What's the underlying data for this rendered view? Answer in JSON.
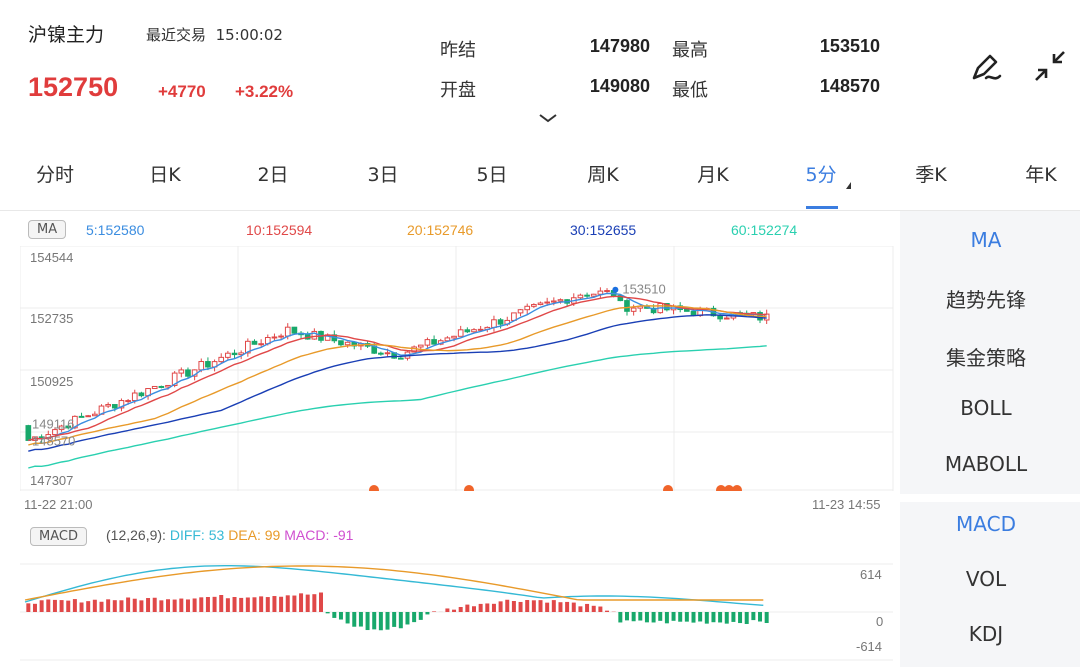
{
  "header": {
    "title": "沪镍主力",
    "last_trade_label": "最近交易",
    "last_trade_time": "15:00:02",
    "price": "152750",
    "change": "+4770",
    "change_pct": "+3.22%",
    "stats": {
      "prev_close_label": "昨结",
      "prev_close": "147980",
      "open_label": "开盘",
      "open": "149080",
      "high_label": "最高",
      "high": "153510",
      "low_label": "最低",
      "low": "148570"
    },
    "icons": {
      "draw": "pen-icon",
      "collapse": "collapse-icon",
      "expand": "chevron-down-icon"
    }
  },
  "tabs": [
    "分时",
    "日K",
    "2日",
    "3日",
    "5日",
    "周K",
    "月K",
    "5分",
    "季K",
    "年K"
  ],
  "active_tab": "5分",
  "main_indicator": {
    "label": "MA",
    "values": [
      {
        "text": "5:152580",
        "color": "#3b8de0"
      },
      {
        "text": "10:152594",
        "color": "#e04848"
      },
      {
        "text": "20:152746",
        "color": "#e89a2a"
      },
      {
        "text": "30:152655",
        "color": "#1a3fb5"
      },
      {
        "text": "60:152274",
        "color": "#2ad0b0"
      }
    ]
  },
  "sub_indicator": {
    "label": "MACD",
    "params": "(12,26,9):",
    "diff": "DIFF: 53",
    "dea": "DEA: 99",
    "macd": "MACD: -91",
    "diff_color": "#35b9d5",
    "dea_color": "#e89a2a",
    "macd_color": "#d04fd0"
  },
  "side_panel": {
    "main": [
      "MA",
      "趋势先锋",
      "集金策略",
      "BOLL",
      "MABOLL"
    ],
    "sub": [
      "MACD",
      "VOL",
      "KDJ"
    ],
    "active_main": "MA",
    "active_sub": "MACD"
  },
  "chart_data": [
    {
      "type": "candlestick",
      "title": "",
      "y_ticks": [
        "154544",
        "152735",
        "150925",
        "147307"
      ],
      "ylim": [
        147307,
        154544
      ],
      "x_start": "11-22 21:00",
      "x_end": "11-23 14:55",
      "high_marker": "153510",
      "low_marker": "148570",
      "extra_marker": "149116",
      "up_color": "#e04848",
      "down_color": "#18a86b",
      "event_dots": 6
    },
    {
      "type": "bar",
      "title": "",
      "y_ticks": [
        "614",
        "0",
        "-614"
      ],
      "ylim": [
        -614,
        614
      ]
    }
  ]
}
